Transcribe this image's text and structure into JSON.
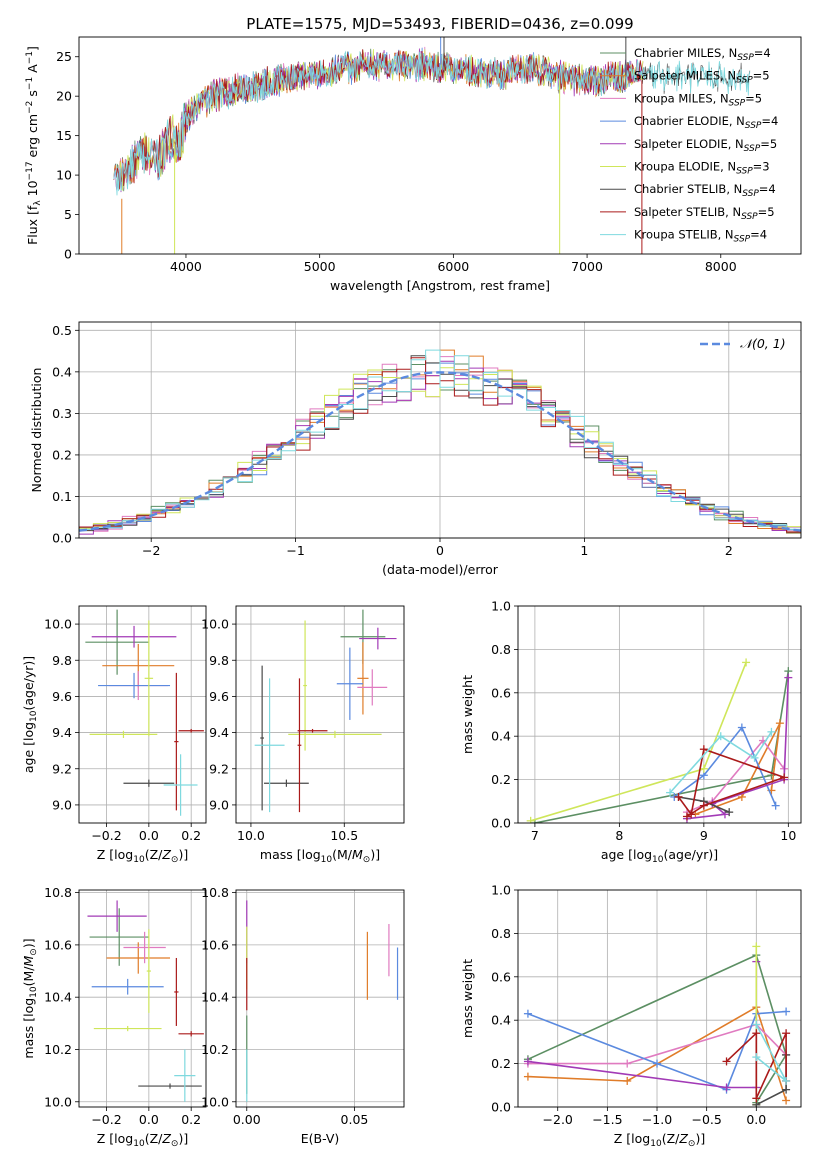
{
  "figure": {
    "title": "PLATE=1575, MJD=53493, FIBERID=0436, z=0.099"
  },
  "colors": [
    "#5c8f63",
    "#e07c29",
    "#e07bc0",
    "#5b8adf",
    "#a23ab6",
    "#cfe65a",
    "#4a4a4a",
    "#aa1a1a",
    "#7fd9df"
  ],
  "chart_data": [
    {
      "id": "spectrum",
      "type": "line",
      "xlabel": "wavelength [Angstrom, rest frame]",
      "ylabel": "Flux [f_λ 10^-17 erg cm^-2 s^-1 A^-1]",
      "xlim": [
        3200,
        8600
      ],
      "ylim": [
        0,
        27.5
      ],
      "xticks": [
        4000,
        5000,
        6000,
        7000,
        8000
      ],
      "yticks": [
        0,
        5,
        10,
        15,
        20,
        25
      ],
      "grid": false,
      "legend_position": "right",
      "series": [
        {
          "name": "Chabrier MILES, N_SSP=4"
        },
        {
          "name": "Salpeter MILES, N_SSP=5"
        },
        {
          "name": "Kroupa MILES, N_SSP=5"
        },
        {
          "name": "Chabrier ELODIE, N_SSP=4"
        },
        {
          "name": "Salpeter ELODIE, N_SSP=5"
        },
        {
          "name": "Kroupa ELODIE, N_SSP=3"
        },
        {
          "name": "Chabrier STELIB, N_SSP=4"
        },
        {
          "name": "Salpeter STELIB, N_SSP=5"
        },
        {
          "name": "Kroupa STELIB, N_SSP=4"
        }
      ],
      "profile": [
        [
          3460,
          9
        ],
        [
          3600,
          11
        ],
        [
          3700,
          13
        ],
        [
          3800,
          12
        ],
        [
          3900,
          15
        ],
        [
          3950,
          14
        ],
        [
          4000,
          17
        ],
        [
          4100,
          19
        ],
        [
          4200,
          20
        ],
        [
          4400,
          21
        ],
        [
          4600,
          21.5
        ],
        [
          4800,
          22.5
        ],
        [
          5000,
          23
        ],
        [
          5200,
          23.5
        ],
        [
          5400,
          24
        ],
        [
          5600,
          24
        ],
        [
          5800,
          24
        ],
        [
          6000,
          23.5
        ],
        [
          6200,
          23
        ],
        [
          6400,
          23
        ],
        [
          6600,
          23.5
        ],
        [
          6800,
          22.5
        ],
        [
          7000,
          22
        ],
        [
          7200,
          22.5
        ],
        [
          7400,
          22.5
        ],
        [
          8000,
          22.5
        ],
        [
          8200,
          22
        ]
      ]
    },
    {
      "id": "residuals",
      "type": "line",
      "xlabel": "(data-model)/error",
      "ylabel": "Normed distribution",
      "xlim": [
        -2.5,
        2.5
      ],
      "ylim": [
        0,
        0.52
      ],
      "xticks": [
        -2,
        -1,
        0,
        1,
        2
      ],
      "yticks": [
        0.0,
        0.1,
        0.2,
        0.3,
        0.4,
        0.5
      ],
      "grid": true,
      "legend_position": "top-right",
      "legend_label": "N(0,1)"
    },
    {
      "id": "age_vs_Z",
      "type": "scatter",
      "xlabel": "Z [log10(Z/Z⊙)]",
      "ylabel": "age [log10(age/yr)]",
      "xlim": [
        -0.33,
        0.27
      ],
      "ylim": [
        8.9,
        10.1
      ],
      "xticks": [
        -0.2,
        0.0,
        0.2
      ],
      "yticks": [
        9.0,
        9.2,
        9.4,
        9.6,
        9.8,
        10.0
      ],
      "grid": true,
      "points": [
        {
          "x": -0.15,
          "y": 9.9,
          "xerr": 0.15,
          "yerr": 0.18,
          "c": 0
        },
        {
          "x": -0.07,
          "y": 9.93,
          "xerr": 0.2,
          "yerr": 0.06,
          "c": 4
        },
        {
          "x": -0.05,
          "y": 9.77,
          "xerr": 0.17,
          "yerr": 0.12,
          "c": 1
        },
        {
          "x": -0.05,
          "y": 9.66,
          "xerr": 0.14,
          "yerr": 0.08,
          "c": 2
        },
        {
          "x": -0.07,
          "y": 9.66,
          "xerr": 0.17,
          "yerr": 0.07,
          "c": 3
        },
        {
          "x": -0.12,
          "y": 9.39,
          "xerr": 0.16,
          "yerr": 0.02,
          "c": 5
        },
        {
          "x": 0.0,
          "y": 9.7,
          "xerr": 0.02,
          "yerr": 0.32,
          "c": 5
        },
        {
          "x": 0.0,
          "y": 9.12,
          "xerr": 0.12,
          "yerr": 0.02,
          "c": 6
        },
        {
          "x": 0.2,
          "y": 9.41,
          "xerr": 0.06,
          "yerr": 0.01,
          "c": 7
        },
        {
          "x": 0.13,
          "y": 9.35,
          "xerr": 0.01,
          "yerr": 0.38,
          "c": 7
        },
        {
          "x": 0.15,
          "y": 9.11,
          "xerr": 0.08,
          "yerr": 0.17,
          "c": 8
        }
      ]
    },
    {
      "id": "age_vs_mass",
      "type": "scatter",
      "xlabel": "mass [log10(M/M⊙)]",
      "ylabel": "",
      "xlim": [
        9.92,
        10.82
      ],
      "ylim": [
        8.9,
        10.1
      ],
      "xticks": [
        10.0,
        10.5
      ],
      "yticks": [
        9.0,
        9.2,
        9.4,
        9.6,
        9.8,
        10.0
      ],
      "grid": true,
      "points": [
        {
          "x": 10.6,
          "y": 9.93,
          "xerr": 0.12,
          "yerr": 0.15,
          "c": 0
        },
        {
          "x": 10.68,
          "y": 9.92,
          "xerr": 0.1,
          "yerr": 0.06,
          "c": 4
        },
        {
          "x": 10.6,
          "y": 9.7,
          "xerr": 0.03,
          "yerr": 0.2,
          "c": 1
        },
        {
          "x": 10.65,
          "y": 9.65,
          "xerr": 0.08,
          "yerr": 0.1,
          "c": 2
        },
        {
          "x": 10.53,
          "y": 9.67,
          "xerr": 0.07,
          "yerr": 0.2,
          "c": 3
        },
        {
          "x": 10.45,
          "y": 9.39,
          "xerr": 0.25,
          "yerr": 0.02,
          "c": 5
        },
        {
          "x": 10.29,
          "y": 9.66,
          "xerr": 0.01,
          "yerr": 0.36,
          "c": 5
        },
        {
          "x": 10.19,
          "y": 9.12,
          "xerr": 0.12,
          "yerr": 0.02,
          "c": 6
        },
        {
          "x": 10.06,
          "y": 9.37,
          "xerr": 0.01,
          "yerr": 0.4,
          "c": 6
        },
        {
          "x": 10.33,
          "y": 9.41,
          "xerr": 0.08,
          "yerr": 0.01,
          "c": 7
        },
        {
          "x": 10.26,
          "y": 9.33,
          "xerr": 0.01,
          "yerr": 0.37,
          "c": 7
        },
        {
          "x": 10.1,
          "y": 9.33,
          "xerr": 0.08,
          "yerr": 0.37,
          "c": 8
        }
      ]
    },
    {
      "id": "weight_vs_age",
      "type": "line",
      "xlabel": "age [log10(age/yr)]",
      "ylabel": "mass weight",
      "xlim": [
        6.8,
        10.15
      ],
      "ylim": [
        0,
        1.0
      ],
      "xticks": [
        7,
        8,
        9,
        10
      ],
      "yticks": [
        0.0,
        0.2,
        0.4,
        0.6,
        0.8,
        1.0
      ],
      "grid": true,
      "series": [
        {
          "x": [
            7.0,
            9.8,
            10.0
          ],
          "y": [
            0.0,
            0.22,
            0.7
          ],
          "c": 0
        },
        {
          "x": [
            8.9,
            9.45,
            9.9,
            9.8
          ],
          "y": [
            0.04,
            0.12,
            0.46,
            0.15
          ],
          "c": 1
        },
        {
          "x": [
            8.8,
            9.1,
            9.7,
            9.95
          ],
          "y": [
            0.05,
            0.1,
            0.38,
            0.25
          ],
          "c": 2
        },
        {
          "x": [
            8.65,
            9.0,
            9.45,
            9.85
          ],
          "y": [
            0.12,
            0.22,
            0.44,
            0.08
          ],
          "c": 3
        },
        {
          "x": [
            8.8,
            9.25,
            9.1,
            9.95,
            10.0
          ],
          "y": [
            0.02,
            0.04,
            0.09,
            0.2,
            0.67
          ],
          "c": 4
        },
        {
          "x": [
            6.95,
            9.0,
            9.5
          ],
          "y": [
            0.01,
            0.25,
            0.74
          ],
          "c": 5
        },
        {
          "x": [
            8.7,
            9.0,
            9.3
          ],
          "y": [
            0.12,
            0.1,
            0.05
          ],
          "c": 6
        },
        {
          "x": [
            8.7,
            8.85,
            9.0,
            9.95,
            9.0,
            8.8
          ],
          "y": [
            0.12,
            0.04,
            0.34,
            0.21,
            0.08,
            0.03
          ],
          "c": 7
        },
        {
          "x": [
            8.6,
            9.2,
            9.6,
            9.8
          ],
          "y": [
            0.14,
            0.4,
            0.3,
            0.42
          ],
          "c": 8
        }
      ]
    },
    {
      "id": "mass_vs_Z",
      "type": "scatter",
      "xlabel": "Z [log10(Z/Z⊙)]",
      "ylabel": "mass [log10(M/M⊙)]",
      "xlim": [
        -0.33,
        0.27
      ],
      "ylim": [
        9.98,
        10.81
      ],
      "xticks": [
        -0.2,
        0.0,
        0.2
      ],
      "yticks": [
        10.0,
        10.2,
        10.4,
        10.6,
        10.8
      ],
      "grid": true,
      "points": [
        {
          "x": -0.14,
          "y": 10.63,
          "xerr": 0.14,
          "yerr": 0.11,
          "c": 0
        },
        {
          "x": -0.15,
          "y": 10.71,
          "xerr": 0.14,
          "yerr": 0.06,
          "c": 4
        },
        {
          "x": -0.05,
          "y": 10.55,
          "xerr": 0.15,
          "yerr": 0.06,
          "c": 1
        },
        {
          "x": -0.02,
          "y": 10.59,
          "xerr": 0.1,
          "yerr": 0.06,
          "c": 2
        },
        {
          "x": -0.1,
          "y": 10.44,
          "xerr": 0.17,
          "yerr": 0.03,
          "c": 3
        },
        {
          "x": -0.1,
          "y": 10.28,
          "xerr": 0.16,
          "yerr": 0.01,
          "c": 5
        },
        {
          "x": 0.0,
          "y": 10.5,
          "xerr": 0.01,
          "yerr": 0.16,
          "c": 5
        },
        {
          "x": 0.1,
          "y": 10.06,
          "xerr": 0.15,
          "yerr": 0.01,
          "c": 6
        },
        {
          "x": 0.2,
          "y": 10.26,
          "xerr": 0.06,
          "yerr": 0.01,
          "c": 7
        },
        {
          "x": 0.13,
          "y": 10.42,
          "xerr": 0.01,
          "yerr": 0.13,
          "c": 7
        },
        {
          "x": 0.17,
          "y": 10.1,
          "xerr": 0.05,
          "yerr": 0.1,
          "c": 8
        }
      ]
    },
    {
      "id": "mass_vs_EBV",
      "type": "scatter",
      "xlabel": "E(B-V)",
      "ylabel": "",
      "xlim": [
        -0.005,
        0.073
      ],
      "ylim": [
        9.98,
        10.81
      ],
      "xticks": [
        0.0,
        0.05
      ],
      "yticks": [
        10.0,
        10.2,
        10.4,
        10.6,
        10.8
      ],
      "grid": true,
      "points": [
        {
          "x": 0.0,
          "y": 10.65,
          "xerr": 0,
          "yerr": 0.12,
          "c": 4
        },
        {
          "x": 0.0,
          "y": 10.55,
          "xerr": 0,
          "yerr": 0.12,
          "c": 5
        },
        {
          "x": 0.0,
          "y": 10.45,
          "xerr": 0,
          "yerr": 0.1,
          "c": 7
        },
        {
          "x": 0.0,
          "y": 10.18,
          "xerr": 0,
          "yerr": 0.15,
          "c": 0
        },
        {
          "x": 0.0,
          "y": 10.1,
          "xerr": 0,
          "yerr": 0.1,
          "c": 8
        },
        {
          "x": 0.056,
          "y": 10.52,
          "xerr": 0,
          "yerr": 0.13,
          "c": 1
        },
        {
          "x": 0.066,
          "y": 10.58,
          "xerr": 0,
          "yerr": 0.1,
          "c": 2
        },
        {
          "x": 0.07,
          "y": 10.49,
          "xerr": 0,
          "yerr": 0.1,
          "c": 3
        }
      ]
    },
    {
      "id": "weight_vs_Z",
      "type": "line",
      "xlabel": "Z [log10(Z/Z⊙)]",
      "ylabel": "mass weight",
      "xlim": [
        -2.4,
        0.45
      ],
      "ylim": [
        0,
        1.0
      ],
      "xticks": [
        -2.0,
        -1.5,
        -1.0,
        -0.5,
        0.0
      ],
      "yticks": [
        0.0,
        0.2,
        0.4,
        0.6,
        0.8,
        1.0
      ],
      "grid": true,
      "series": [
        {
          "x": [
            -2.3,
            0.0,
            0.3,
            0.0
          ],
          "y": [
            0.22,
            0.7,
            0.24,
            0.02
          ],
          "c": 0
        },
        {
          "x": [
            -2.3,
            -1.3,
            0.0,
            0.3
          ],
          "y": [
            0.14,
            0.12,
            0.46,
            0.03
          ],
          "c": 1
        },
        {
          "x": [
            -2.3,
            -1.3,
            0.0,
            0.3
          ],
          "y": [
            0.2,
            0.2,
            0.38,
            0.24
          ],
          "c": 2
        },
        {
          "x": [
            -2.3,
            -1.0,
            -0.3,
            0.0,
            0.3
          ],
          "y": [
            0.43,
            0.2,
            0.08,
            0.43,
            0.44
          ],
          "c": 3
        },
        {
          "x": [
            -2.3,
            -0.3,
            0.0,
            0.0
          ],
          "y": [
            0.21,
            0.09,
            0.09,
            0.67
          ],
          "c": 4
        },
        {
          "x": [
            0.0,
            0.0
          ],
          "y": [
            0.01,
            0.74
          ],
          "c": 5
        },
        {
          "x": [
            0.0,
            0.3,
            0.3
          ],
          "y": [
            0.01,
            0.08,
            0.24
          ],
          "c": 6
        },
        {
          "x": [
            -0.3,
            0.0,
            0.0,
            0.3,
            0.3
          ],
          "y": [
            0.21,
            0.34,
            0.04,
            0.34,
            0.12
          ],
          "c": 7
        },
        {
          "x": [
            0.0,
            0.3,
            0.0
          ],
          "y": [
            0.23,
            0.12,
            0.38
          ],
          "c": 8
        }
      ]
    }
  ]
}
